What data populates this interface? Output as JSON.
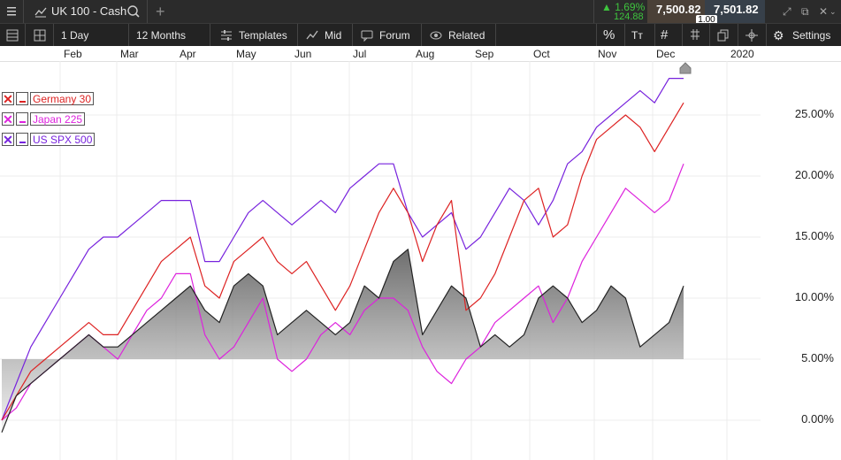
{
  "window": {
    "menu_icon": "hamburger-icon",
    "instrument_icon": "line-chart-icon",
    "instrument": "UK 100 - Cash",
    "search_icon": "search-icon",
    "add_icon": "plus-icon"
  },
  "quote": {
    "change_pct": "1.69%",
    "change_abs": "124.88",
    "bid": "7,500.82",
    "ask": "7,501.82",
    "spread": "1.00",
    "up_color": "#3ec43e"
  },
  "window_controls": [
    "expand-icon",
    "popout-icon",
    "close-icon",
    "chevron-down-icon"
  ],
  "toolbar": {
    "interval": "1 Day",
    "range": "12 Months",
    "templates": "Templates",
    "price": "Mid",
    "forum": "Forum",
    "related": "Related",
    "settings": "Settings"
  },
  "chart_data": {
    "type": "line",
    "x_ticks": [
      "Feb",
      "Mar",
      "Apr",
      "May",
      "Jun",
      "Jul",
      "Aug",
      "Sep",
      "Oct",
      "Nov",
      "Dec",
      "2020"
    ],
    "y_ticks": [
      "25.00%",
      "20.00%",
      "15.00%",
      "10.00%",
      "5.00%",
      "0.00%"
    ],
    "ylim": [
      -3,
      30
    ],
    "grid": true,
    "legend_position": "top-left",
    "series": [
      {
        "name": "UK 100 - Cash",
        "color": "#222222",
        "fill": true,
        "values": [
          -1,
          2,
          3,
          4,
          5,
          6,
          7,
          6,
          6,
          7,
          8,
          9,
          10,
          11,
          9,
          8,
          11,
          12,
          11,
          7,
          8,
          9,
          8,
          7,
          8,
          11,
          10,
          13,
          14,
          7,
          9,
          11,
          10,
          6,
          7,
          6,
          7,
          10,
          11,
          10,
          8,
          9,
          11,
          10,
          6,
          7,
          8,
          11
        ]
      },
      {
        "name": "Germany 30",
        "color": "#dd2222",
        "fill": false,
        "values": [
          0,
          2,
          4,
          5,
          6,
          7,
          8,
          7,
          7,
          9,
          11,
          13,
          14,
          15,
          11,
          10,
          13,
          14,
          15,
          13,
          12,
          13,
          11,
          9,
          11,
          14,
          17,
          19,
          17,
          13,
          16,
          18,
          9,
          10,
          12,
          15,
          18,
          19,
          15,
          16,
          20,
          23,
          24,
          25,
          24,
          22,
          24,
          26
        ]
      },
      {
        "name": "Japan 225",
        "color": "#dd22dd",
        "fill": false,
        "values": [
          0,
          1,
          3,
          4,
          5,
          6,
          7,
          6,
          5,
          7,
          9,
          10,
          12,
          12,
          7,
          5,
          6,
          8,
          10,
          5,
          4,
          5,
          7,
          8,
          7,
          9,
          10,
          10,
          9,
          6,
          4,
          3,
          5,
          6,
          8,
          9,
          10,
          11,
          8,
          10,
          13,
          15,
          17,
          19,
          18,
          17,
          18,
          21
        ]
      },
      {
        "name": "US SPX 500",
        "color": "#7722dd",
        "fill": false,
        "values": [
          0,
          3,
          6,
          8,
          10,
          12,
          14,
          15,
          15,
          16,
          17,
          18,
          18,
          18,
          13,
          13,
          15,
          17,
          18,
          17,
          16,
          17,
          18,
          17,
          19,
          20,
          21,
          21,
          17,
          15,
          16,
          17,
          14,
          15,
          17,
          19,
          18,
          16,
          18,
          21,
          22,
          24,
          25,
          26,
          27,
          26,
          28,
          28
        ]
      }
    ]
  }
}
